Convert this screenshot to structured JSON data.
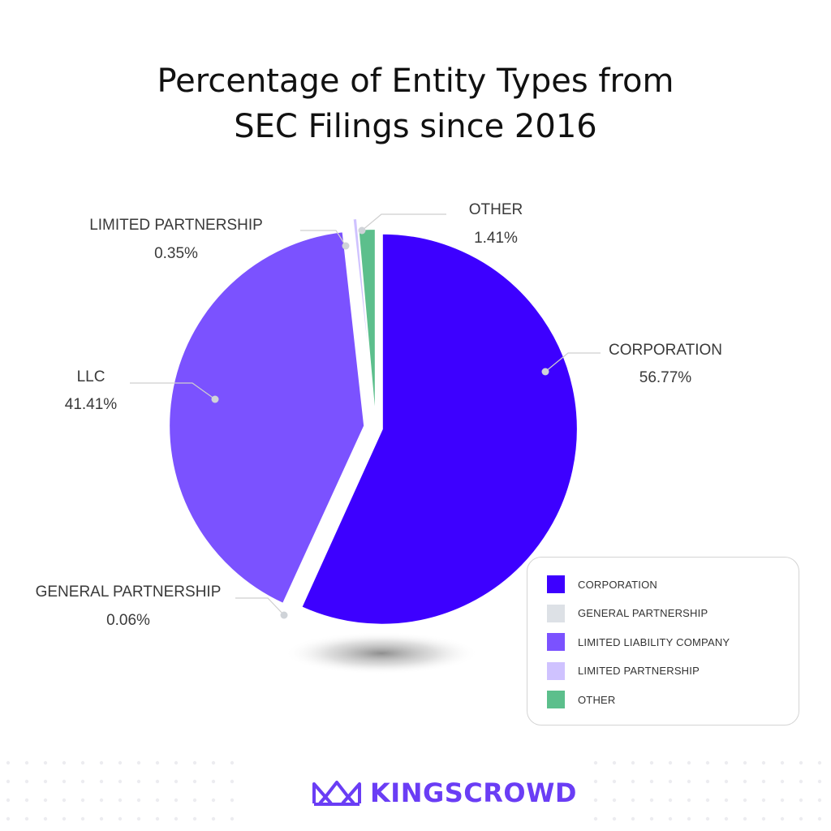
{
  "title": {
    "line1": "Percentage of Entity Types from",
    "line2": "SEC Filings since 2016"
  },
  "chart_data": {
    "type": "pie",
    "title": "Percentage of Entity Types from SEC Filings since 2016",
    "slices": [
      {
        "name": "CORPORATION",
        "label": "CORPORATION",
        "value": 56.77,
        "display": "56.77%",
        "color": "#3d00ff",
        "legend": "CORPORATION"
      },
      {
        "name": "GENERAL PARTNERSHIP",
        "label": "GENERAL PARTNERSHIP",
        "value": 0.06,
        "display": "0.06%",
        "color": "#dde1e6",
        "legend": "GENERAL PARTNERSHIP"
      },
      {
        "name": "LLC",
        "label": "LLC",
        "value": 41.41,
        "display": "41.41%",
        "color": "#7b52ff",
        "legend": "LIMITED LIABILITY COMPANY"
      },
      {
        "name": "LIMITED PARTNERSHIP",
        "label": "LIMITED PARTNERSHIP",
        "value": 0.35,
        "display": "0.35%",
        "color": "#cfc2ff",
        "legend": "LIMITED PARTNERSHIP"
      },
      {
        "name": "OTHER",
        "label": "OTHER",
        "value": 1.41,
        "display": "1.41%",
        "color": "#5cbf8c",
        "legend": "OTHER"
      }
    ],
    "legend_placement": "bottom-right"
  },
  "logo": {
    "text": "KINGSCROWD",
    "color": "#6a3df5"
  }
}
